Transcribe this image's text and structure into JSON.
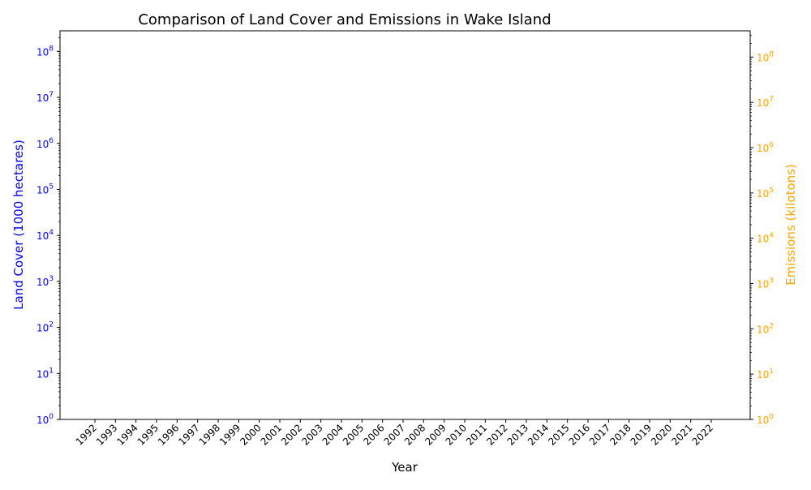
{
  "chart_data": {
    "type": "line",
    "title": "Comparison of Land Cover and Emissions in Wake Island",
    "xlabel": "Year",
    "ylabel_left": "Land Cover (1000 hectares)",
    "ylabel_right": "Emissions (kilotons)",
    "categories": [
      "1992",
      "1993",
      "1994",
      "1995",
      "1996",
      "1997",
      "1998",
      "1999",
      "2000",
      "2001",
      "2002",
      "2003",
      "2004",
      "2005",
      "2006",
      "2007",
      "2008",
      "2009",
      "2010",
      "2011",
      "2012",
      "2013",
      "2014",
      "2015",
      "2016",
      "2017",
      "2018",
      "2019",
      "2020",
      "2021",
      "2022"
    ],
    "y_left_scale": "log",
    "y_left_range": [
      1,
      280000000
    ],
    "y_left_ticks": [
      {
        "exp": 0,
        "label": "0"
      },
      {
        "exp": 1,
        "label": "1"
      },
      {
        "exp": 2,
        "label": "2"
      },
      {
        "exp": 3,
        "label": "3"
      },
      {
        "exp": 4,
        "label": "4"
      },
      {
        "exp": 5,
        "label": "5"
      },
      {
        "exp": 6,
        "label": "6"
      },
      {
        "exp": 7,
        "label": "7"
      },
      {
        "exp": 8,
        "label": "8"
      }
    ],
    "y_right_scale": "log",
    "y_right_range": [
      1,
      380000000
    ],
    "y_right_ticks": [
      {
        "exp": 0,
        "label": "0"
      },
      {
        "exp": 1,
        "label": "1"
      },
      {
        "exp": 2,
        "label": "2"
      },
      {
        "exp": 3,
        "label": "3"
      },
      {
        "exp": 4,
        "label": "4"
      },
      {
        "exp": 5,
        "label": "5"
      },
      {
        "exp": 6,
        "label": "6"
      },
      {
        "exp": 7,
        "label": "7"
      },
      {
        "exp": 8,
        "label": "8"
      }
    ],
    "tick_base": "10",
    "series": [],
    "grid": false,
    "legend": "none",
    "colors": {
      "left_axis": "#0000ff",
      "right_axis": "#ffa500",
      "text": "#000000"
    }
  }
}
